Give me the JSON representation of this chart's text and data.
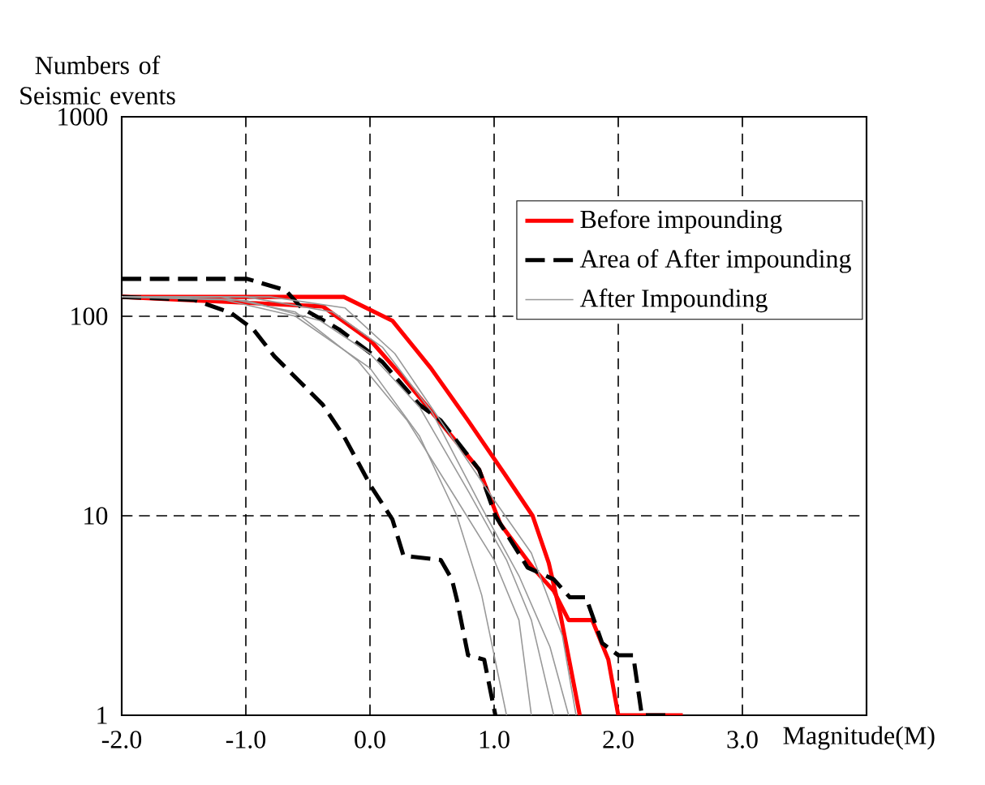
{
  "chart_data": {
    "type": "line",
    "xlabel": "Magnitude(M)",
    "ylabel": "Numbers of Seismic events",
    "log": "y",
    "grid": true,
    "legend": "top right",
    "xlim": [
      -2,
      4
    ],
    "ylim": [
      1,
      1000
    ],
    "xticks": [
      {
        "value": -2,
        "label": "-2.0"
      },
      {
        "value": -1,
        "label": "-1.0"
      },
      {
        "value": 0,
        "label": "0.0"
      },
      {
        "value": 1,
        "label": "1.0"
      },
      {
        "value": 2,
        "label": "2.0"
      },
      {
        "value": 3,
        "label": "3.0"
      },
      {
        "value": 4,
        "label": null
      }
    ],
    "yticks": [
      1,
      10,
      100,
      1000
    ],
    "series": [
      {
        "name": "Before impounding",
        "color": "#ff0000",
        "line_style": "solid",
        "x": [
          -2,
          -0.21,
          0.18,
          0.49,
          0.79,
          1.09,
          1.31,
          1.44,
          1.53,
          1.69
        ],
        "values": [
          125,
          125,
          95,
          55,
          30,
          16,
          10,
          5.8,
          3.3,
          1
        ]
      },
      {
        "color": "#ff0000",
        "line_style": "solid",
        "x": [
          -2,
          -0.38,
          0.01,
          0.27,
          0.66,
          0.88,
          1.05,
          1.31,
          1.48,
          1.6,
          1.79,
          1.92,
          2.0,
          2.52
        ],
        "values": [
          125,
          112,
          75,
          49,
          25,
          17,
          9.1,
          5.5,
          4.2,
          3,
          3,
          1.9,
          1,
          1
        ]
      },
      {
        "name": "Area of After impounding",
        "color": "#000000",
        "line_style": "dashed",
        "x": [
          -2,
          -0.99,
          -0.68,
          -0.55,
          -0.25,
          0.1,
          0.4,
          0.57,
          0.88,
          1.01,
          1.27,
          1.48,
          1.61,
          1.74,
          1.87,
          2.0,
          2.12,
          2.19,
          2.39
        ],
        "values": [
          154,
          154,
          135,
          110,
          86,
          59,
          36,
          30,
          17,
          10,
          5.5,
          4.8,
          3.9,
          3.9,
          2.3,
          2.0,
          2.0,
          1,
          1
        ]
      },
      {
        "color": "#000000",
        "line_style": "dashed",
        "x": [
          -2,
          -1.42,
          -1.12,
          -0.94,
          -0.77,
          -0.55,
          -0.38,
          -0.21,
          0.01,
          0.18,
          0.27,
          0.57,
          0.66,
          0.7,
          0.79,
          0.92,
          1.01
        ],
        "values": [
          125,
          121,
          104,
          86,
          63,
          46,
          36,
          25,
          14,
          9.6,
          6.3,
          6.0,
          4.8,
          3.8,
          2.0,
          1.9,
          1
        ]
      },
      {
        "name": "After Impounding",
        "color": "#999999",
        "line_style": "solid",
        "x": [
          -2,
          -1.2,
          -0.6,
          0,
          0.4,
          0.7,
          0.9,
          1.0,
          1.1
        ],
        "values": [
          125,
          122,
          100,
          55,
          25,
          10,
          4,
          2,
          1
        ]
      },
      {
        "color": "#999999",
        "line_style": "solid",
        "x": [
          -2,
          -1,
          -0.4,
          0,
          0.4,
          0.8,
          1.1,
          1.3,
          1.48
        ],
        "values": [
          125,
          120,
          95,
          65,
          35,
          13,
          6,
          3,
          1
        ]
      },
      {
        "color": "#999999",
        "line_style": "solid",
        "x": [
          -2,
          -1,
          -0.3,
          0.1,
          0.5,
          0.9,
          1.2,
          1.45,
          1.6
        ],
        "values": [
          125,
          125,
          105,
          70,
          33,
          11,
          5,
          2.2,
          1
        ]
      },
      {
        "color": "#999999",
        "line_style": "solid",
        "x": [
          -2,
          -0.8,
          -0.2,
          0.2,
          0.6,
          1.0,
          1.3,
          1.55,
          1.66
        ],
        "values": [
          125,
          125,
          110,
          65,
          28,
          12,
          6.5,
          2.5,
          1
        ]
      },
      {
        "color": "#999999",
        "line_style": "solid",
        "x": [
          -2,
          -1.2,
          -0.6,
          -0.1,
          0.3,
          0.7,
          1.0,
          1.2,
          1.3
        ],
        "values": [
          125,
          125,
          105,
          60,
          30,
          12,
          6,
          3,
          1
        ]
      }
    ]
  }
}
